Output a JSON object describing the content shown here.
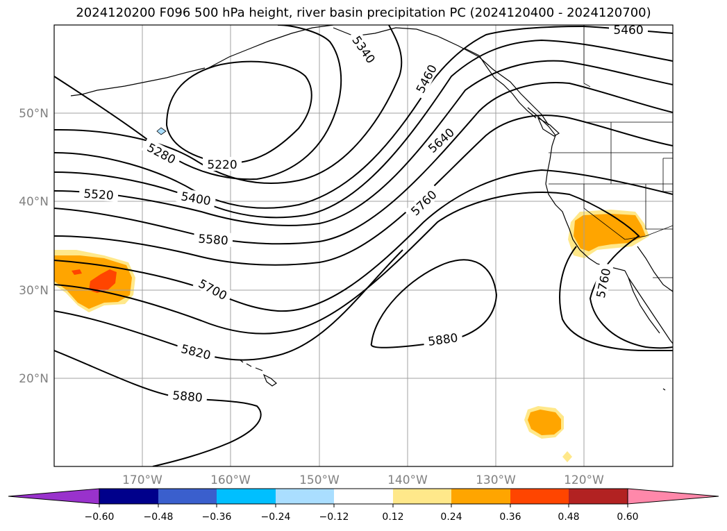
{
  "title": "2024120200 F096 500 hPa height, river basin precipitation PC (2024120400 - 2024120700)",
  "map": {
    "projection": "PlateCarree",
    "extent_lon": [
      -180,
      -110
    ],
    "extent_lat": [
      10,
      60
    ],
    "lat_labels": [
      "50°N",
      "40°N",
      "30°N",
      "20°N"
    ],
    "lon_labels": [
      "170°W",
      "160°W",
      "150°W",
      "140°W",
      "130°W",
      "120°W"
    ],
    "contour_labels": [
      "5460",
      "5340",
      "5460",
      "5640",
      "5280",
      "5220",
      "5520",
      "5400",
      "5760",
      "5580",
      "5700",
      "5880",
      "5760",
      "5820",
      "5880"
    ],
    "colors": {
      "contour": "#000000",
      "grid": "#a0a0a0",
      "pc_orange": "#ffa500",
      "pc_red": "#ff4500",
      "pc_yellow": "#ffe88a",
      "pc_lightblue": "#aadeff"
    }
  },
  "colorbar": {
    "ticks": [
      "−0.60",
      "−0.48",
      "−0.36",
      "−0.24",
      "−0.12",
      "0.12",
      "0.24",
      "0.36",
      "0.48",
      "0.60"
    ],
    "colors": [
      "#9932cc",
      "#00008b",
      "#3a5fcd",
      "#00bfff",
      "#aadeff",
      "#ffffff",
      "#ffe88a",
      "#ffa500",
      "#ff4500",
      "#b22222",
      "#ff88aa"
    ]
  }
}
